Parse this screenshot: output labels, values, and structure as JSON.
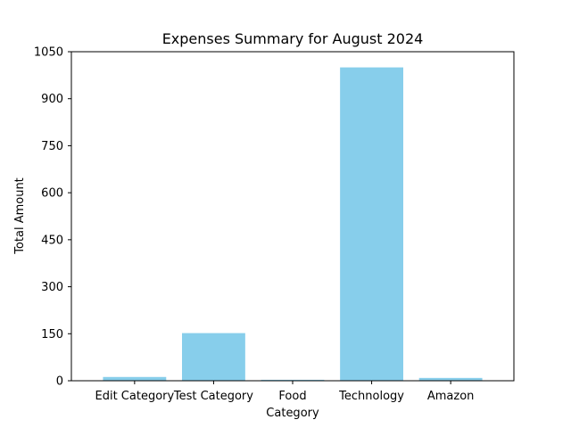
{
  "colors": {
    "bar": "#87CEEB",
    "axis": "#000000",
    "background": "#ffffff"
  },
  "chart_data": {
    "type": "bar",
    "title": "Expenses Summary for August 2024",
    "xlabel": "Category",
    "ylabel": "Total Amount",
    "categories": [
      "Edit Category",
      "Test Category",
      "Food",
      "Technology",
      "Amazon"
    ],
    "values": [
      12,
      152,
      3,
      1000,
      9
    ],
    "ylim": [
      0,
      1050
    ],
    "yticks": [
      0,
      150,
      300,
      450,
      600,
      750,
      900,
      1050
    ],
    "ytick_labels": [
      "0",
      "150",
      "300",
      "450",
      "600",
      "750",
      "900",
      "1050"
    ],
    "grid": false,
    "legend": "none"
  }
}
